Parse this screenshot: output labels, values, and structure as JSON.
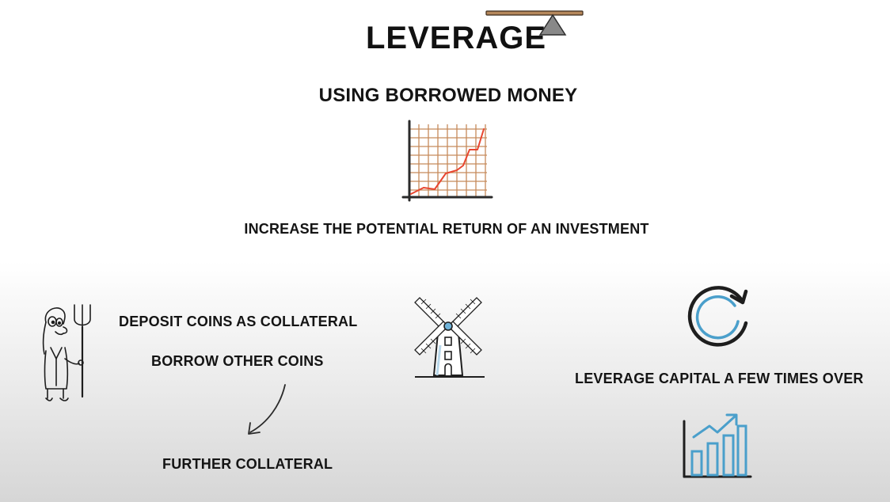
{
  "title": "LEVERAGE",
  "subtitle": "USING BORROWED MONEY",
  "tagline": "INCREASE THE POTENTIAL RETURN OF AN INVESTMENT",
  "left_notes": {
    "deposit": "DEPOSIT COINS AS COLLATERAL",
    "borrow": "BORROW OTHER COINS",
    "further": "FURTHER COLLATERAL"
  },
  "right_note": "LEVERAGE CAPITAL A FEW TIMES OVER",
  "icons": [
    "seesaw-icon",
    "rising-graph-icon",
    "farmer-with-pitchfork-icon",
    "curved-arrow-icon",
    "windmill-icon",
    "refresh-icon",
    "bar-chart-up-icon"
  ],
  "colors": {
    "ink": "#141414",
    "graph_line": "#e8462f",
    "graph_grid": "#c58a5a",
    "accent_blue": "#4a9fcb",
    "seesaw_plank": "#b5875b",
    "seesaw_base": "#888888"
  }
}
